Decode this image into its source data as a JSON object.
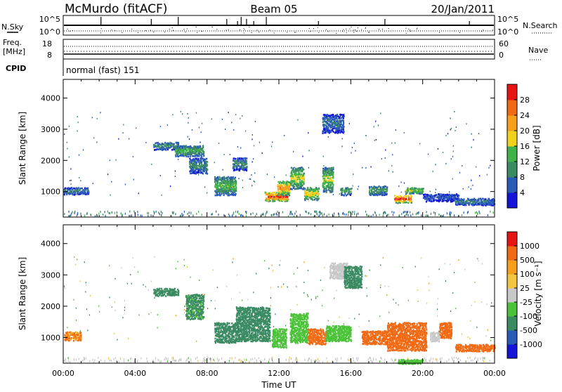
{
  "header": {
    "station": "McMurdo (fitACF)",
    "beam": "Beam 05",
    "date": "20/Jan/2011"
  },
  "noise_panel": {
    "left_label": "N.Sky",
    "right_label": "N.Search",
    "top_tick": "10^5",
    "bottom_tick": "10^0"
  },
  "freq_panel": {
    "left_label_line1": "Freq.",
    "left_label_line2": "[MHz]",
    "left_ticks": [
      "18",
      "8"
    ],
    "right_label": "Nave",
    "right_ticks": [
      "60",
      "0"
    ]
  },
  "cpid_panel": {
    "label": "CPID",
    "mode": "normal (fast) 151"
  },
  "colors": {
    "power_scale": [
      "#1414d8",
      "#2a5ab8",
      "#3a8a62",
      "#3fb24a",
      "#f0d21a",
      "#f59f1a",
      "#f06a14",
      "#e81414"
    ],
    "velocity_scale": [
      "#e81414",
      "#f06a14",
      "#f59f1a",
      "#f5c542",
      "#c8c8c8",
      "#4cc23a",
      "#3a8a62",
      "#2a5ab8",
      "#1414d8"
    ]
  },
  "chart_data": [
    {
      "type": "heatmap",
      "name": "power",
      "ylabel": "Slant Range [km]",
      "yticks": [
        1000,
        2000,
        3000,
        4000
      ],
      "ylim": [
        180,
        4600
      ],
      "xlim": [
        0,
        24
      ],
      "colorbar_label": "Power [dB]",
      "colorbar_ticks": [
        "4",
        "8",
        "12",
        "16",
        "20",
        "24",
        "28"
      ],
      "colorbar_range": [
        0,
        32
      ],
      "features": [
        {
          "t0": 0.0,
          "t1": 1.4,
          "r0": 920,
          "r1": 1150,
          "level": 9
        },
        {
          "t0": 5.0,
          "t1": 6.4,
          "r0": 2350,
          "r1": 2600,
          "level": 11
        },
        {
          "t0": 6.2,
          "t1": 7.8,
          "r0": 2150,
          "r1": 2500,
          "level": 14
        },
        {
          "t0": 7.0,
          "t1": 8.0,
          "r0": 1600,
          "r1": 2100,
          "level": 10
        },
        {
          "t0": 8.4,
          "t1": 9.6,
          "r0": 900,
          "r1": 1500,
          "level": 15
        },
        {
          "t0": 9.4,
          "t1": 10.2,
          "r0": 1700,
          "r1": 2100,
          "level": 10
        },
        {
          "t0": 11.2,
          "t1": 12.5,
          "r0": 700,
          "r1": 1000,
          "level": 30
        },
        {
          "t0": 11.9,
          "t1": 12.6,
          "r0": 900,
          "r1": 1350,
          "level": 24
        },
        {
          "t0": 12.6,
          "t1": 13.4,
          "r0": 1100,
          "r1": 1800,
          "level": 18
        },
        {
          "t0": 13.4,
          "t1": 14.2,
          "r0": 750,
          "r1": 1150,
          "level": 20
        },
        {
          "t0": 14.4,
          "t1": 15.0,
          "r0": 1000,
          "r1": 1800,
          "level": 17
        },
        {
          "t0": 14.4,
          "t1": 15.6,
          "r0": 2900,
          "r1": 3500,
          "level": 8
        },
        {
          "t0": 15.4,
          "t1": 16.0,
          "r0": 900,
          "r1": 1150,
          "level": 13
        },
        {
          "t0": 17.0,
          "t1": 18.0,
          "r0": 900,
          "r1": 1200,
          "level": 12
        },
        {
          "t0": 18.4,
          "t1": 19.4,
          "r0": 650,
          "r1": 900,
          "level": 30
        },
        {
          "t0": 19.0,
          "t1": 20.0,
          "r0": 950,
          "r1": 1150,
          "level": 18
        },
        {
          "t0": 20.0,
          "t1": 22.0,
          "r0": 700,
          "r1": 950,
          "level": 6
        },
        {
          "t0": 21.8,
          "t1": 24.0,
          "r0": 580,
          "r1": 800,
          "level": 9
        }
      ]
    },
    {
      "type": "heatmap",
      "name": "velocity",
      "ylabel": "Slant Range [km]",
      "yticks": [
        1000,
        2000,
        3000,
        4000
      ],
      "ylim": [
        180,
        4600
      ],
      "xlim": [
        0,
        24
      ],
      "xticks": [
        "00:00",
        "04:00",
        "08:00",
        "12:00",
        "16:00",
        "20:00",
        "00:00"
      ],
      "xlabel": "Time UT",
      "colorbar_label": "Velocity [m s⁻¹]",
      "colorbar_ticks": [
        "1000",
        "500",
        "100",
        "25",
        "-25",
        "-100",
        "-500",
        "-1000"
      ],
      "features": [
        {
          "t0": 0.0,
          "t1": 1.0,
          "r0": 920,
          "r1": 1200,
          "level": -100
        },
        {
          "t0": 5.0,
          "t1": 6.4,
          "r0": 2350,
          "r1": 2600,
          "level": 300
        },
        {
          "t0": 6.8,
          "t1": 7.8,
          "r0": 1600,
          "r1": 2400,
          "level": 120
        },
        {
          "t0": 8.4,
          "t1": 9.6,
          "r0": 850,
          "r1": 1500,
          "level": 300
        },
        {
          "t0": 9.6,
          "t1": 11.5,
          "r0": 900,
          "r1": 2000,
          "level": 300
        },
        {
          "t0": 11.6,
          "t1": 12.4,
          "r0": 700,
          "r1": 1300,
          "level": 60
        },
        {
          "t0": 12.6,
          "t1": 13.6,
          "r0": 850,
          "r1": 1800,
          "level": 60
        },
        {
          "t0": 13.6,
          "t1": 14.6,
          "r0": 800,
          "r1": 1300,
          "level": -300
        },
        {
          "t0": 14.6,
          "t1": 16.0,
          "r0": 900,
          "r1": 1400,
          "level": 60
        },
        {
          "t0": 14.8,
          "t1": 15.8,
          "r0": 2900,
          "r1": 3400,
          "level": 0
        },
        {
          "t0": 15.6,
          "t1": 16.6,
          "r0": 2600,
          "r1": 3300,
          "level": 200
        },
        {
          "t0": 16.6,
          "t1": 18.0,
          "r0": 800,
          "r1": 1250,
          "level": -300
        },
        {
          "t0": 18.0,
          "t1": 20.2,
          "r0": 600,
          "r1": 1500,
          "level": -300
        },
        {
          "t0": 20.4,
          "t1": 20.9,
          "r0": 900,
          "r1": 1200,
          "level": 0
        },
        {
          "t0": 20.9,
          "t1": 21.6,
          "r0": 1000,
          "r1": 1500,
          "level": -300
        },
        {
          "t0": 21.8,
          "t1": 24.0,
          "r0": 580,
          "r1": 800,
          "level": -300
        },
        {
          "t0": 18.6,
          "t1": 20.0,
          "r0": 180,
          "r1": 320,
          "level": 60
        }
      ]
    }
  ]
}
